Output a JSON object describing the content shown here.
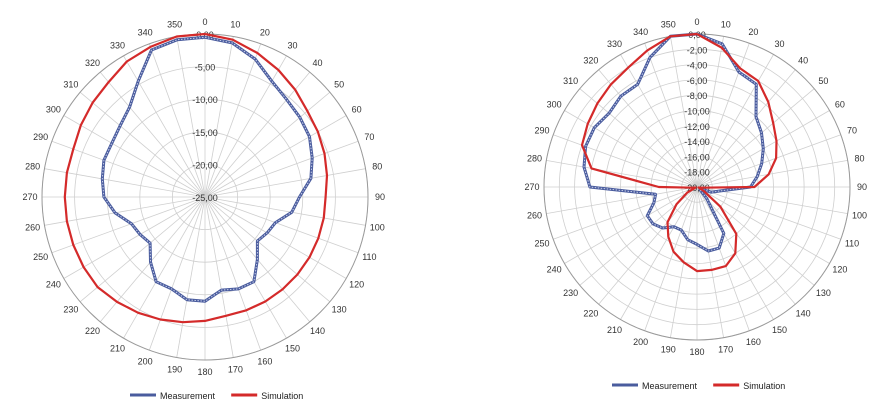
{
  "chart_data": [
    {
      "type": "polar-line",
      "grid": true,
      "theta_step_deg": 10,
      "theta_ticks": [
        "0",
        "10",
        "20",
        "30",
        "40",
        "50",
        "60",
        "70",
        "80",
        "90",
        "100",
        "110",
        "120",
        "130",
        "140",
        "150",
        "160",
        "170",
        "180",
        "190",
        "200",
        "210",
        "220",
        "230",
        "240",
        "250",
        "260",
        "270",
        "280",
        "290",
        "300",
        "310",
        "320",
        "330",
        "340",
        "350"
      ],
      "rlim": [
        -25,
        0
      ],
      "r_tick_labels": [
        "0,00",
        "-5,00",
        "-10,00",
        "-15,00",
        "-20,00",
        "-25,00"
      ],
      "r_tick_values": [
        0,
        -5,
        -10,
        -15,
        -20,
        -25
      ],
      "legend": {
        "position": "bottom"
      },
      "series": [
        {
          "name": "Measurement",
          "color": "#4a5c9e",
          "theta": [
            0,
            10,
            20,
            30,
            40,
            50,
            60,
            70,
            80,
            90,
            100,
            110,
            120,
            130,
            140,
            150,
            160,
            170,
            180,
            190,
            200,
            210,
            220,
            230,
            240,
            250,
            260,
            270,
            280,
            290,
            300,
            310,
            320,
            330,
            340,
            350
          ],
          "values": [
            -0.5,
            -1.0,
            -2.5,
            -4.5,
            -5.5,
            -6.0,
            -6.5,
            -7.5,
            -8.5,
            -10.5,
            -11.5,
            -13.5,
            -14.0,
            -14.5,
            -12.5,
            -10.0,
            -10.0,
            -10.5,
            -9.0,
            -9.0,
            -10.0,
            -10.0,
            -12.0,
            -14.0,
            -13.5,
            -13.0,
            -11.0,
            -9.5,
            -9.0,
            -8.5,
            -8.5,
            -8.0,
            -7.0,
            -4.5,
            -1.0,
            -0.5
          ]
        },
        {
          "name": "Simulation",
          "color": "#d42a2a",
          "theta": [
            0,
            10,
            20,
            30,
            40,
            50,
            60,
            70,
            80,
            90,
            100,
            110,
            120,
            130,
            140,
            150,
            160,
            170,
            180,
            190,
            200,
            210,
            220,
            230,
            240,
            250,
            260,
            270,
            280,
            290,
            300,
            310,
            320,
            330,
            340,
            350
          ],
          "values": [
            0.0,
            -0.5,
            -1.5,
            -2.5,
            -3.5,
            -4.5,
            -5.0,
            -5.5,
            -6.0,
            -6.5,
            -6.5,
            -6.5,
            -6.5,
            -6.5,
            -6.5,
            -6.5,
            -6.5,
            -6.5,
            -6.0,
            -5.5,
            -5.0,
            -4.5,
            -4.0,
            -3.5,
            -3.5,
            -3.5,
            -3.5,
            -3.5,
            -3.5,
            -3.5,
            -3.0,
            -2.5,
            -2.0,
            -1.0,
            -0.5,
            0.0
          ]
        }
      ]
    },
    {
      "type": "polar-line",
      "grid": true,
      "theta_step_deg": 10,
      "theta_ticks": [
        "0",
        "10",
        "20",
        "30",
        "40",
        "50",
        "60",
        "70",
        "80",
        "90",
        "100",
        "110",
        "120",
        "130",
        "140",
        "150",
        "160",
        "170",
        "180",
        "190",
        "200",
        "210",
        "220",
        "230",
        "240",
        "250",
        "260",
        "270",
        "280",
        "290",
        "300",
        "310",
        "320",
        "330",
        "340",
        "350"
      ],
      "rlim": [
        -20,
        0
      ],
      "r_tick_labels": [
        "0,00",
        "-2,00",
        "-4,00",
        "-6,00",
        "-8,00",
        "-10,00",
        "-12,00",
        "-14,00",
        "-16,00",
        "-18,00",
        "-20,00"
      ],
      "r_tick_values": [
        0,
        -2,
        -4,
        -6,
        -8,
        -10,
        -12,
        -14,
        -16,
        -18,
        -20
      ],
      "legend": {
        "position": "bottom"
      },
      "series": [
        {
          "name": "Measurement",
          "color": "#4a5c9e",
          "theta": [
            0,
            10,
            20,
            30,
            40,
            50,
            60,
            70,
            80,
            90,
            100,
            110,
            120,
            130,
            140,
            150,
            160,
            170,
            180,
            190,
            200,
            210,
            220,
            230,
            240,
            250,
            260,
            270,
            280,
            290,
            300,
            310,
            320,
            330,
            340,
            350
          ],
          "values": [
            0.0,
            -1.0,
            -4.0,
            -4.5,
            -8.0,
            -9.0,
            -10.0,
            -11.0,
            -12.0,
            -13.0,
            -17.0,
            -18.0,
            -19.5,
            -19.5,
            -18.0,
            -13.0,
            -11.5,
            -11.5,
            -12.5,
            -13.0,
            -14.0,
            -14.0,
            -13.0,
            -12.5,
            -12.5,
            -14.0,
            -14.5,
            -6.0,
            -5.0,
            -4.5,
            -4.5,
            -5.0,
            -4.5,
            -4.5,
            -2.0,
            0.0
          ]
        },
        {
          "name": "Simulation",
          "color": "#d42a2a",
          "theta": [
            0,
            10,
            20,
            30,
            40,
            50,
            60,
            70,
            80,
            90,
            100,
            110,
            120,
            130,
            140,
            150,
            160,
            170,
            180,
            190,
            200,
            210,
            220,
            230,
            240,
            250,
            260,
            270,
            280,
            290,
            300,
            310,
            320,
            330,
            340,
            350
          ],
          "values": [
            0.0,
            -1.5,
            -3.5,
            -4.0,
            -5.5,
            -7.0,
            -8.0,
            -9.0,
            -10.5,
            -12.5,
            -19.5,
            -19.8,
            -19.0,
            -16.0,
            -12.0,
            -10.0,
            -9.0,
            -9.0,
            -9.0,
            -10.0,
            -11.0,
            -12.5,
            -14.0,
            -16.5,
            -18.5,
            -19.8,
            -19.5,
            -15.0,
            -6.0,
            -4.0,
            -3.5,
            -3.0,
            -2.5,
            -2.0,
            -1.0,
            0.0
          ]
        }
      ]
    }
  ]
}
